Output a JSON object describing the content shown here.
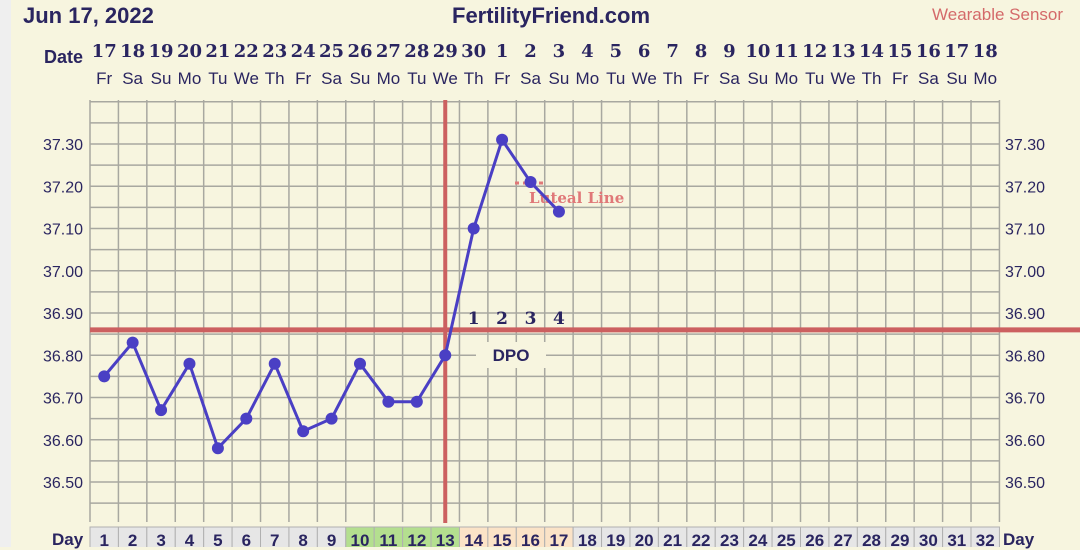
{
  "header": {
    "date": "Jun 17, 2022",
    "site": "FertilityFriend.com",
    "sensor": "Wearable Sensor"
  },
  "labels": {
    "date": "Date",
    "day": "Day",
    "dpo": "DPO",
    "luteal": "Luteal Line"
  },
  "colors": {
    "line": "#4a3fc4",
    "coverline": "#cc6060",
    "background": "#f7f5df",
    "fertile": "#b4df8f",
    "luteal_days": "#fbe3c7",
    "day_cell": "#e6e6e6"
  },
  "chart_data": {
    "type": "line",
    "dates": [
      "17",
      "18",
      "19",
      "20",
      "21",
      "22",
      "23",
      "24",
      "25",
      "26",
      "27",
      "28",
      "29",
      "30",
      "1",
      "2",
      "3",
      "4",
      "5",
      "6",
      "7",
      "8",
      "9",
      "10",
      "11",
      "12",
      "13",
      "14",
      "15",
      "16",
      "17",
      "18"
    ],
    "weekdays": [
      "Fr",
      "Sa",
      "Su",
      "Mo",
      "Tu",
      "We",
      "Th",
      "Fr",
      "Sa",
      "Su",
      "Mo",
      "Tu",
      "We",
      "Th",
      "Fr",
      "Sa",
      "Su",
      "Mo",
      "Tu",
      "We",
      "Th",
      "Fr",
      "Sa",
      "Su",
      "Mo",
      "Tu",
      "We",
      "Th",
      "Fr",
      "Sa",
      "Su",
      "Mo"
    ],
    "days": [
      1,
      2,
      3,
      4,
      5,
      6,
      7,
      8,
      9,
      10,
      11,
      12,
      13,
      14,
      15,
      16,
      17,
      18,
      19,
      20,
      21,
      22,
      23,
      24,
      25,
      26,
      27,
      28,
      29,
      30,
      31,
      32
    ],
    "temperatures": [
      36.75,
      36.83,
      36.67,
      36.78,
      36.58,
      36.65,
      36.78,
      36.62,
      36.65,
      36.78,
      36.69,
      36.69,
      36.8,
      37.1,
      37.31,
      37.21,
      37.14
    ],
    "y_ticks": [
      "37.30",
      "37.20",
      "37.10",
      "37.00",
      "36.90",
      "36.80",
      "36.70",
      "36.60",
      "36.50"
    ],
    "ylim": [
      36.41,
      37.41
    ],
    "coverline": 36.86,
    "ovulation_day": 13,
    "fertile_days": [
      10,
      11,
      12,
      13
    ],
    "dpo_days": [
      14,
      15,
      16,
      17
    ],
    "dpo_labels": [
      "1",
      "2",
      "3",
      "4"
    ],
    "grid": true
  }
}
